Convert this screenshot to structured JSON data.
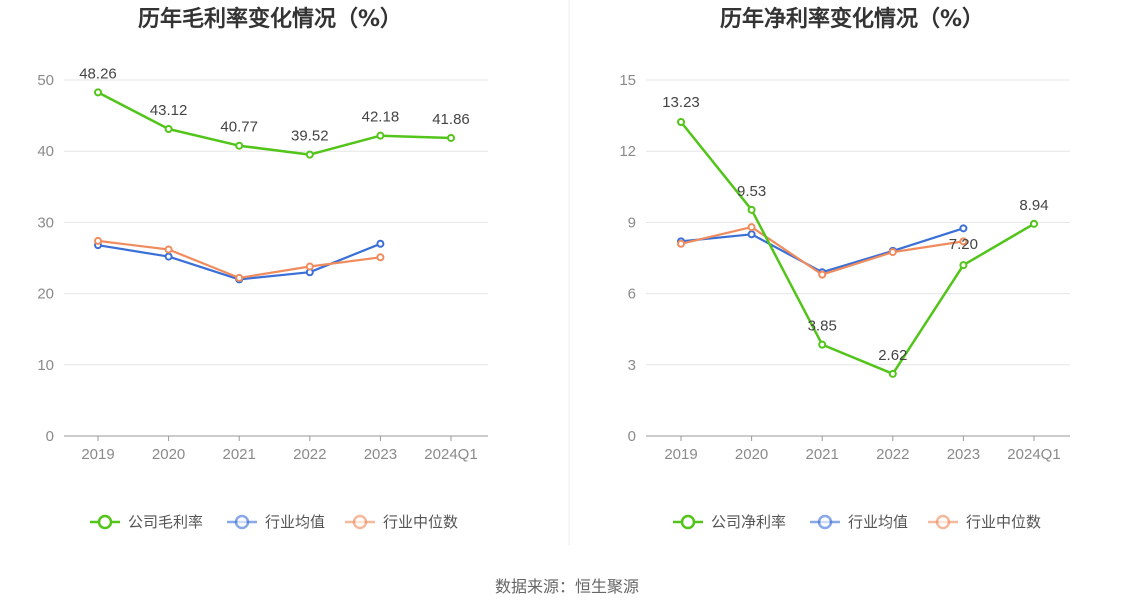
{
  "colors": {
    "company": "#52c41a",
    "industry_avg": "#3a6fd8",
    "industry_median": "#f08b5e",
    "grid": "#e6e6e6",
    "axis": "#999999",
    "divider": "#eeeeee"
  },
  "source": "数据来源：恒生聚源",
  "chart_data": [
    {
      "type": "line",
      "title": "历年毛利率变化情况（%）",
      "categories": [
        "2019",
        "2020",
        "2021",
        "2022",
        "2023",
        "2024Q1"
      ],
      "ylim": [
        0,
        50
      ],
      "yticks": [
        0,
        10,
        20,
        30,
        40,
        50
      ],
      "grid": true,
      "legend_position": "bottom",
      "series": [
        {
          "name": "公司毛利率",
          "key": "company",
          "values": [
            48.26,
            43.12,
            40.77,
            39.52,
            42.18,
            41.86
          ],
          "labels": [
            "48.26",
            "43.12",
            "40.77",
            "39.52",
            "42.18",
            "41.86"
          ]
        },
        {
          "name": "行业均值",
          "key": "industry_avg",
          "values": [
            26.8,
            25.2,
            22.0,
            23.0,
            27.0,
            null
          ]
        },
        {
          "name": "行业中位数",
          "key": "industry_median",
          "values": [
            27.4,
            26.2,
            22.2,
            23.8,
            25.1,
            null
          ]
        }
      ]
    },
    {
      "type": "line",
      "title": "历年净利率变化情况（%）",
      "categories": [
        "2019",
        "2020",
        "2021",
        "2022",
        "2023",
        "2024Q1"
      ],
      "ylim": [
        0,
        15
      ],
      "yticks": [
        0,
        3,
        6,
        9,
        12,
        15
      ],
      "grid": true,
      "legend_position": "bottom",
      "series": [
        {
          "name": "公司净利率",
          "key": "company",
          "values": [
            13.23,
            9.53,
            3.85,
            2.62,
            7.2,
            8.94
          ],
          "labels": [
            "13.23",
            "9.53",
            "3.85",
            "2.62",
            "7.20",
            "8.94"
          ]
        },
        {
          "name": "行业均值",
          "key": "industry_avg",
          "values": [
            8.2,
            8.5,
            6.9,
            7.8,
            8.75,
            null
          ]
        },
        {
          "name": "行业中位数",
          "key": "industry_median",
          "values": [
            8.1,
            8.8,
            6.8,
            7.75,
            8.2,
            null
          ]
        }
      ]
    }
  ]
}
